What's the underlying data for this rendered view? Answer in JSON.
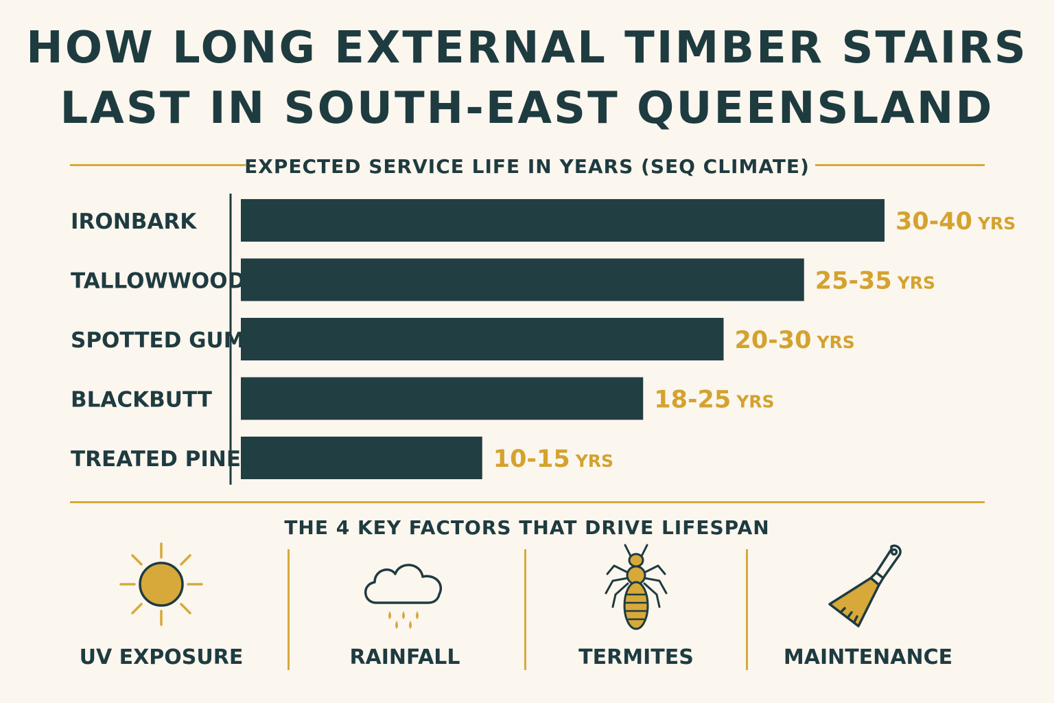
{
  "title": {
    "line1": "HOW LONG EXTERNAL TIMBER STAIRS",
    "line2": "LAST IN SOUTH-EAST QUEENSLAND"
  },
  "colors": {
    "background": "#fbf6ee",
    "navy": "#1e3b40",
    "bar": "#213e43",
    "gold": "#d6a93a",
    "label_gold": "#d4a22e"
  },
  "chart_data": {
    "type": "bar",
    "orientation": "horizontal",
    "title": "EXPECTED SERVICE LIFE IN YEARS (SEQ CLIMATE)",
    "xlabel": "",
    "ylabel": "",
    "xlim": [
      0,
      40
    ],
    "grid": false,
    "categories": [
      "IRONBARK",
      "TALLOWWOOD",
      "SPOTTED GUM",
      "BLACKBUTT",
      "TREATED PINE"
    ],
    "ranges": [
      [
        30,
        40
      ],
      [
        25,
        35
      ],
      [
        20,
        30
      ],
      [
        18,
        25
      ],
      [
        10,
        15
      ]
    ],
    "values": [
      40,
      35,
      30,
      25,
      15
    ],
    "data_labels": [
      {
        "range": "30-40",
        "unit": "YRS"
      },
      {
        "range": "25-35",
        "unit": "YRS"
      },
      {
        "range": "20-30",
        "unit": "YRS"
      },
      {
        "range": "18-25",
        "unit": "YRS"
      },
      {
        "range": "10-15",
        "unit": "YRS"
      }
    ]
  },
  "factors": {
    "heading": "THE 4 KEY FACTORS THAT DRIVE LIFESPAN",
    "items": [
      {
        "label": "UV EXPOSURE",
        "icon": "sun-icon"
      },
      {
        "label": "RAINFALL",
        "icon": "rain-cloud-icon"
      },
      {
        "label": "TERMITES",
        "icon": "termite-icon"
      },
      {
        "label": "MAINTENANCE",
        "icon": "paintbrush-icon"
      }
    ]
  }
}
